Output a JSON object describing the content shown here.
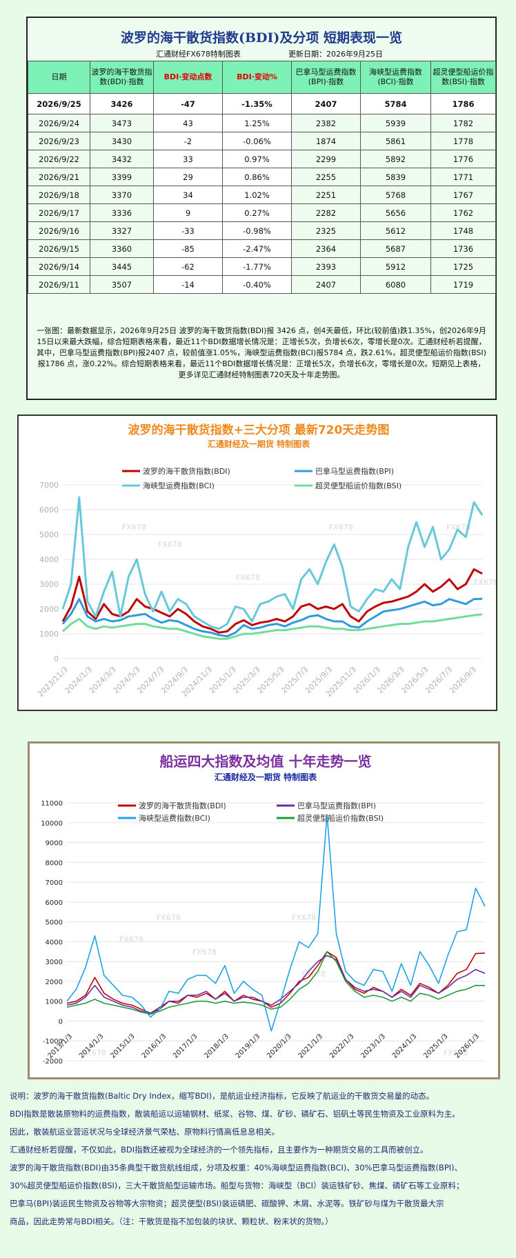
{
  "top_panel": {
    "title": "波罗的海干散货指数(BDI)及分项 短期表现一览",
    "maker": "汇通财经FX678特制图表",
    "updated": "更新日期：2026年9月25日",
    "headers": [
      "日期",
      "波罗的海干散货指数(BDI)·指数",
      "BDI·变动点数",
      "BDI·变动%",
      "巴拿马型运费指数(BPI)·指数",
      "海峡型运费指数(BCI)·指数",
      "超灵便型船运价指数(BSI)·指数"
    ],
    "rows": [
      [
        "2026/9/25",
        "3426",
        "-47",
        "-1.35%",
        "2407",
        "5784",
        "1786"
      ],
      [
        "2026/9/24",
        "3473",
        "43",
        "1.25%",
        "2382",
        "5939",
        "1782"
      ],
      [
        "2026/9/23",
        "3430",
        "-2",
        "-0.06%",
        "1874",
        "5861",
        "1778"
      ],
      [
        "2026/9/22",
        "3432",
        "33",
        "0.97%",
        "2299",
        "5892",
        "1776"
      ],
      [
        "2026/9/21",
        "3399",
        "29",
        "0.86%",
        "2255",
        "5839",
        "1771"
      ],
      [
        "2026/9/18",
        "3370",
        "34",
        "1.02%",
        "2251",
        "5768",
        "1767"
      ],
      [
        "2026/9/17",
        "3336",
        "9",
        "0.27%",
        "2282",
        "5656",
        "1762"
      ],
      [
        "2026/9/16",
        "3327",
        "-33",
        "-0.98%",
        "2325",
        "5612",
        "1748"
      ],
      [
        "2026/9/15",
        "3360",
        "-85",
        "-2.47%",
        "2364",
        "5687",
        "1736"
      ],
      [
        "2026/9/14",
        "3445",
        "-62",
        "-1.77%",
        "2393",
        "5912",
        "1725"
      ],
      [
        "2026/9/11",
        "3507",
        "-14",
        "-0.40%",
        "2407",
        "6080",
        "1719"
      ]
    ],
    "summary": "一张图：最新数据显示，2026年9月25日 波罗的海干散货指数(BDI)报 3426 点，创4天最低，环比(较前值)跌1.35%，创2026年9月15日以来最大跌幅，综合短期表格来看，最近11个BDI数据增长情况是：正增长5次，负增长6次，零增长是0次。汇通财经析若提醒，其中，巴拿马型运费指数(BPI)报2407 点，较前值涨1.05%，海峡型运费指数(BCI)报5784 点，跌2.61%，超灵便型船运价指数(BSI)报1786 点，涨0.22%。综合短期表格来看，最近11个BDI数据增长情况是：正增长5次，负增长6次，零增长是0次。短期见上表格，更多详见汇通财经特制图表720天及十年走势图。"
  },
  "chart_data": [
    {
      "type": "line",
      "title": "波罗的海干散货指数+三大分项 最新720天走势图",
      "subtitle": "汇通财经及一期货 特制图表",
      "x_ticks": [
        "2023/11/3",
        "2024/1/3",
        "2024/3/3",
        "2024/5/3",
        "2024/7/3",
        "2024/9/3",
        "2024/11/3",
        "2025/1/3",
        "2025/3/3",
        "2025/5/3",
        "2025/7/3",
        "2025/9/3",
        "2025/11/3",
        "2026/1/3",
        "2026/3/3",
        "2026/5/3",
        "2026/7/3",
        "2026/9/3"
      ],
      "ylim": [
        0,
        7000
      ],
      "y_ticks": [
        0,
        1000,
        2000,
        3000,
        4000,
        5000,
        6000,
        7000
      ],
      "legend": "top",
      "watermark": "FX678",
      "series": [
        {
          "name": "波罗的海干散货指数(BDI)",
          "color": "#c00000",
          "values": [
            1500,
            2100,
            3300,
            1900,
            1600,
            2200,
            1800,
            1700,
            1900,
            2400,
            2100,
            2000,
            1850,
            1700,
            2000,
            1800,
            1500,
            1300,
            1200,
            1050,
            1100,
            1400,
            1550,
            1350,
            1450,
            1500,
            1600,
            1500,
            1700,
            2100,
            2200,
            2000,
            2100,
            2000,
            2200,
            1700,
            1500,
            1900,
            2100,
            2250,
            2300,
            2400,
            2500,
            2700,
            3000,
            2700,
            2900,
            3200,
            2800,
            3000,
            3600,
            3426
          ]
        },
        {
          "name": "巴拿马型运费指数(BPI)",
          "color": "#2e9be0",
          "values": [
            1400,
            1800,
            2400,
            1700,
            1500,
            1600,
            1500,
            1550,
            1700,
            1750,
            1800,
            1600,
            1450,
            1550,
            1500,
            1350,
            1200,
            1100,
            1050,
            950,
            900,
            1050,
            1350,
            1200,
            1250,
            1350,
            1400,
            1300,
            1450,
            1550,
            1700,
            1750,
            1600,
            1500,
            1500,
            1300,
            1250,
            1500,
            1700,
            1900,
            1950,
            2000,
            2100,
            2200,
            2300,
            2150,
            2200,
            2400,
            2300,
            2200,
            2400,
            2407
          ]
        },
        {
          "name": "海峡型运费指数(BCI)",
          "color": "#66c8d8",
          "values": [
            2000,
            3000,
            6500,
            2300,
            1700,
            2700,
            3500,
            1700,
            3300,
            4000,
            2600,
            1900,
            2700,
            1900,
            2400,
            2200,
            1700,
            1500,
            1300,
            1200,
            1400,
            2100,
            2000,
            1500,
            2200,
            2300,
            2500,
            2600,
            2000,
            3200,
            3600,
            3000,
            3900,
            4600,
            3700,
            2100,
            1900,
            2400,
            2800,
            2700,
            3200,
            2800,
            4500,
            5500,
            4500,
            5300,
            4000,
            4400,
            5200,
            4900,
            6300,
            5784
          ]
        },
        {
          "name": "超灵便型船运价指数(BSI)",
          "color": "#6fdc9c",
          "values": [
            1100,
            1400,
            1600,
            1300,
            1200,
            1300,
            1250,
            1300,
            1350,
            1400,
            1400,
            1300,
            1250,
            1200,
            1200,
            1100,
            1000,
            900,
            850,
            800,
            800,
            900,
            1000,
            1000,
            1050,
            1100,
            1150,
            1150,
            1200,
            1250,
            1300,
            1300,
            1250,
            1200,
            1200,
            1150,
            1150,
            1200,
            1250,
            1300,
            1350,
            1400,
            1400,
            1450,
            1500,
            1500,
            1550,
            1600,
            1650,
            1700,
            1750,
            1786
          ]
        }
      ]
    },
    {
      "type": "line",
      "title": "船运四大指数及均值 十年走势一览",
      "subtitle": "汇通财经及一期货 特制图表",
      "x_ticks": [
        "2013/1/3",
        "2014/1/3",
        "2015/1/3",
        "2016/1/3",
        "2017/1/3",
        "2018/1/3",
        "2019/1/3",
        "2020/1/3",
        "2021/1/3",
        "2022/1/3",
        "2023/1/3",
        "2024/1/3",
        "2025/1/3",
        "2026/1/3"
      ],
      "ylim": [
        -2000,
        11000
      ],
      "y_ticks": [
        -2000,
        -1000,
        0,
        1000,
        2000,
        3000,
        4000,
        5000,
        6000,
        7000,
        8000,
        9000,
        10000,
        11000
      ],
      "legend": "top",
      "watermark": "FX678",
      "series": [
        {
          "name": "波罗的海干散货指数(BDI)",
          "color": "#c00000",
          "values": [
            900,
            1000,
            1300,
            2200,
            1400,
            1100,
            900,
            800,
            600,
            400,
            600,
            1000,
            900,
            1300,
            1200,
            1400,
            1100,
            1500,
            1000,
            1300,
            1100,
            1000,
            700,
            900,
            1400,
            2000,
            2200,
            2800,
            3500,
            3200,
            2100,
            1600,
            1400,
            1700,
            1500,
            1200,
            1600,
            1300,
            1900,
            1700,
            1400,
            1800,
            2400,
            2600,
            3400,
            3426
          ]
        },
        {
          "name": "巴拿马型运费指数(BPI)",
          "color": "#6a2aa0",
          "values": [
            800,
            900,
            1200,
            1800,
            1200,
            1000,
            800,
            700,
            500,
            400,
            700,
            1000,
            1000,
            1300,
            1300,
            1500,
            1100,
            1400,
            1000,
            1200,
            1200,
            1000,
            800,
            1100,
            1500,
            1900,
            2500,
            3000,
            3300,
            3100,
            2100,
            1700,
            1500,
            1600,
            1500,
            1200,
            1500,
            1200,
            1800,
            1600,
            1400,
            1700,
            2100,
            2300,
            2600,
            2407
          ]
        },
        {
          "name": "海峡型运费指数(BCI)",
          "color": "#1aa3e6",
          "values": [
            1000,
            1600,
            2700,
            4300,
            2300,
            1800,
            1300,
            1200,
            800,
            200,
            600,
            1500,
            1400,
            2100,
            2300,
            2300,
            1900,
            2800,
            1400,
            2000,
            1600,
            1300,
            -500,
            1000,
            2600,
            4000,
            3700,
            4400,
            10400,
            4400,
            2500,
            2000,
            1800,
            2600,
            2500,
            1500,
            2900,
            1800,
            3500,
            2800,
            1900,
            3300,
            4500,
            4600,
            6700,
            5784
          ]
        },
        {
          "name": "超灵便型船运价指数(BSI)",
          "color": "#1f9a3a",
          "values": [
            700,
            800,
            900,
            1100,
            900,
            800,
            700,
            600,
            450,
            350,
            500,
            700,
            800,
            900,
            1000,
            1000,
            900,
            1000,
            900,
            950,
            900,
            800,
            600,
            700,
            1100,
            1600,
            1900,
            2500,
            3500,
            3000,
            2000,
            1500,
            1200,
            1300,
            1200,
            1000,
            1200,
            1000,
            1400,
            1300,
            1100,
            1300,
            1500,
            1600,
            1800,
            1786
          ]
        }
      ]
    }
  ],
  "notes": [
    "说明：波罗的海干散货指数(Baltic Dry Index，缩写BDI)，是航运业经济指标，它反映了航运业的干散货交易量的动态。",
    "BDI指数是散装原物料的运费指数，散装船运以运输钢材、纸浆、谷物、煤、矿砂、磷矿石、铝矾土等民生物资及工业原料为主。",
    "因此，散装航运业营运状况与全球经济景气荣枯、原物料行情高低息息相关。",
    "汇通财经析若提醒，不仅如此，BDI指数还被视为全球经济的一个领先指标，且主要作为一种期货交易的工具而被创立。",
    "波罗的海干散货指数(BDI)由35条典型干散货航线组成，分项及权重：40%海峡型运费指数(BCI)、30%巴拿马型运费指数(BPI)、",
    "30%超灵便型船运价指数(BSI)，三大干散货船型运输市场。船型与货物：海峡型（BCI）装运铁矿砂、焦煤、磷矿石等工业原料；",
    "巴拿马(BPI)装运民生物资及谷物等大宗物资；超灵便型(BSI)装运磷肥、碳酸钾、木屑、水泥等。铁矿砂与煤为干散货最大宗",
    "商品，因此走势常与BDI相关。（注：干散货是指不加包装的块状、颗粒状、粉末状的货物。）"
  ]
}
